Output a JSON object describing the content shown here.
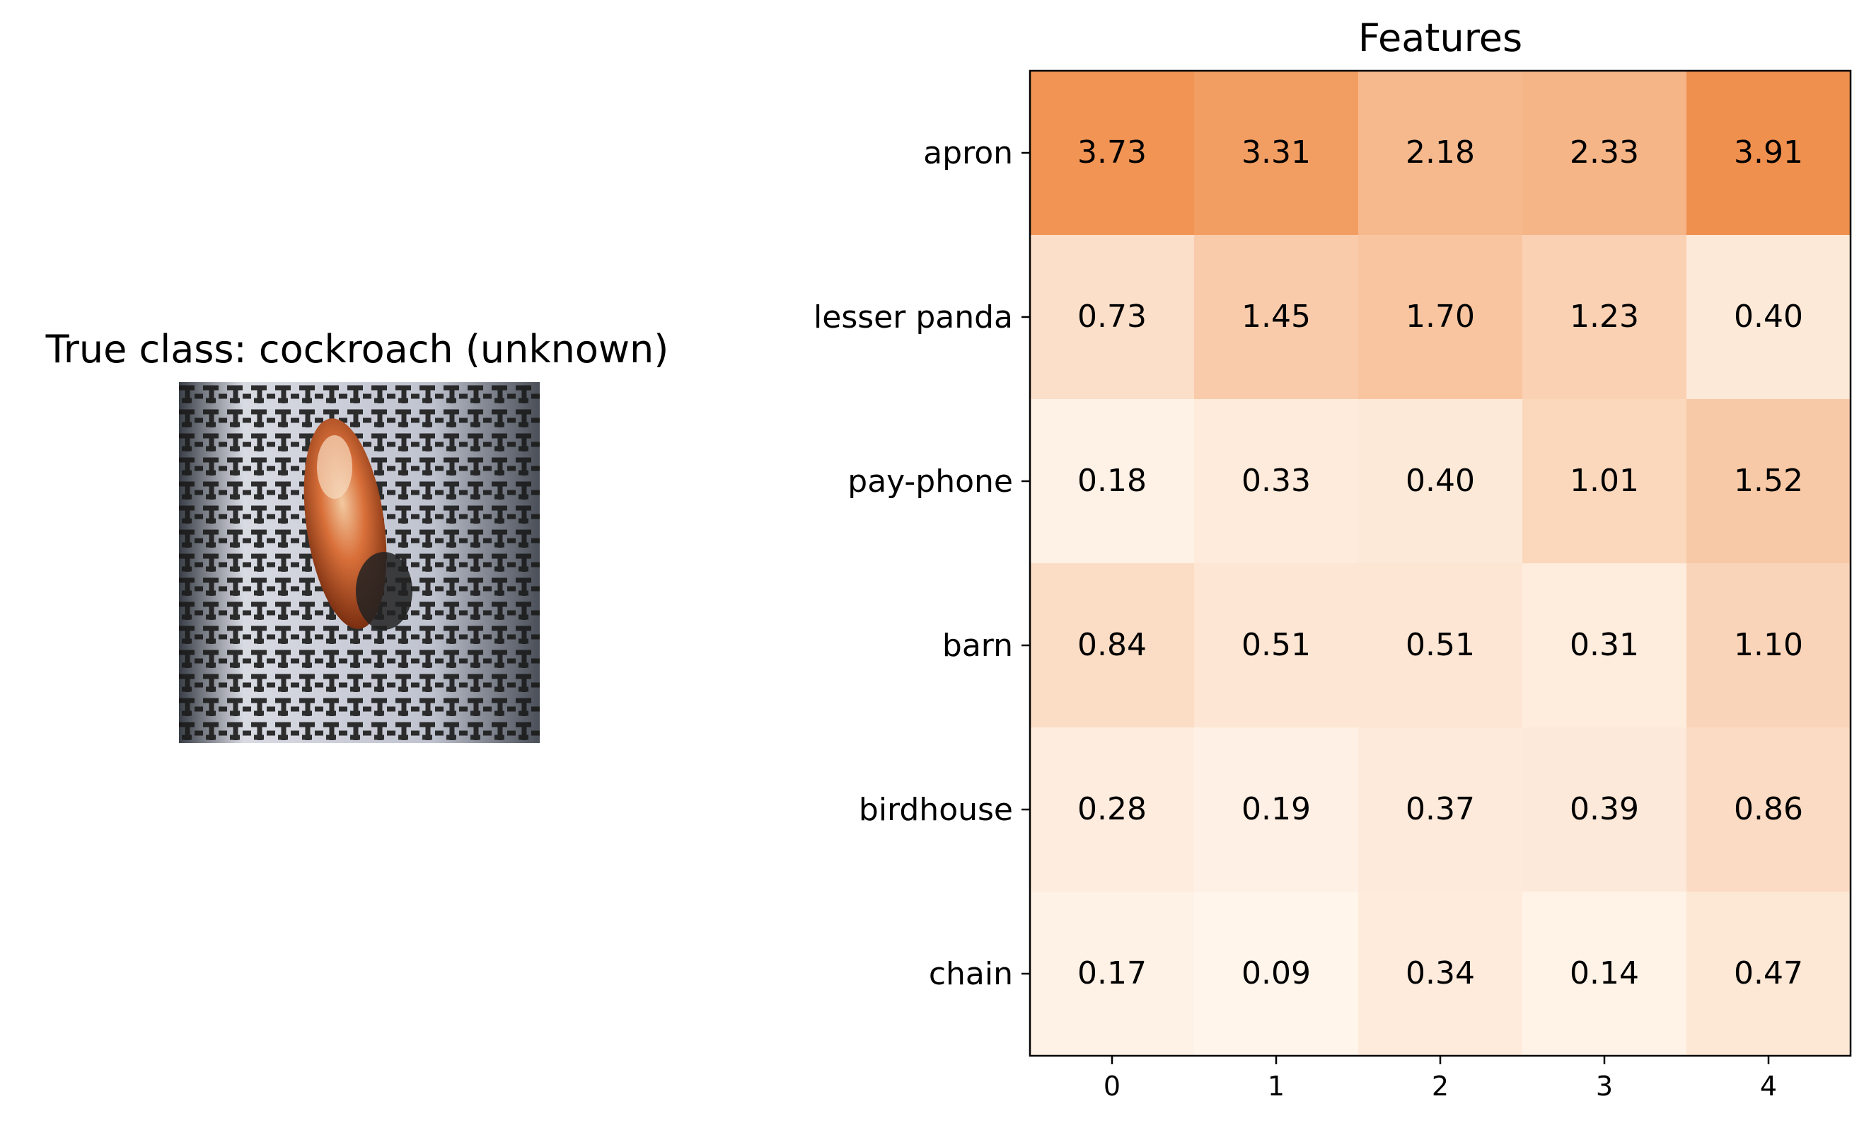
{
  "image_panel": {
    "title": "True class: cockroach (unknown)"
  },
  "chart_data": {
    "type": "heatmap",
    "title": "Features",
    "xlabel": "",
    "ylabel": "",
    "x_categories": [
      "0",
      "1",
      "2",
      "3",
      "4"
    ],
    "y_categories": [
      "apron",
      "lesser panda",
      "pay-phone",
      "barn",
      "birdhouse",
      "chain"
    ],
    "values": [
      [
        3.73,
        3.31,
        2.18,
        2.33,
        3.91
      ],
      [
        0.73,
        1.45,
        1.7,
        1.23,
        0.4
      ],
      [
        0.18,
        0.33,
        0.4,
        1.01,
        1.52
      ],
      [
        0.84,
        0.51,
        0.51,
        0.31,
        1.1
      ],
      [
        0.28,
        0.19,
        0.37,
        0.39,
        0.86
      ],
      [
        0.17,
        0.09,
        0.34,
        0.14,
        0.47
      ]
    ],
    "value_format": "0.00",
    "colormap": "Oranges",
    "colormap_min_color": "#fff5eb",
    "colormap_max_color": "#f0904e",
    "grid": false,
    "legend": "none"
  }
}
